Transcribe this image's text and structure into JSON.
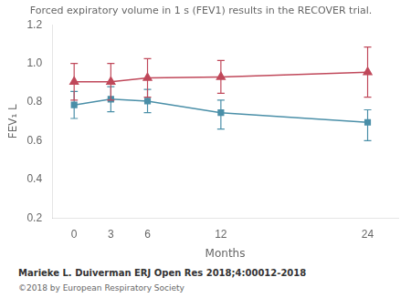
{
  "chart_data": {
    "type": "line",
    "title": "Forced expiratory volume in 1 s (FEV1) results in the RECOVER trial.",
    "xlabel": "Months",
    "ylabel": "FEV₁ L",
    "x": [
      0,
      3,
      6,
      12,
      24
    ],
    "xlim": [
      -1.8,
      26.5
    ],
    "xticks": [
      0,
      3,
      6,
      12,
      24
    ],
    "ylim": [
      0.2,
      1.2
    ],
    "yticks": [
      0.2,
      0.4,
      0.6,
      0.8,
      {
        "value": 1.0,
        "label": "1.0"
      },
      1.2
    ],
    "grid": false,
    "series": [
      {
        "color": "#4a8fa8",
        "marker": "square",
        "values": [
          0.785,
          0.815,
          0.805,
          0.745,
          0.695
        ],
        "error_low": [
          0.07,
          0.065,
          0.06,
          0.085,
          0.095
        ],
        "error_high": [
          0.07,
          0.065,
          0.06,
          0.065,
          0.065
        ]
      },
      {
        "color": "#c0485a",
        "marker": "triangle",
        "values": [
          0.905,
          0.905,
          0.925,
          0.93,
          0.955
        ],
        "error_low": [
          0.095,
          0.095,
          0.1,
          0.085,
          0.13
        ],
        "error_high": [
          0.095,
          0.095,
          0.1,
          0.085,
          0.13
        ]
      }
    ],
    "caption": "Marieke L. Duiverman ERJ Open Res 2018;4:00012-2018",
    "copyright": "©2018 by European Respiratory Society"
  }
}
